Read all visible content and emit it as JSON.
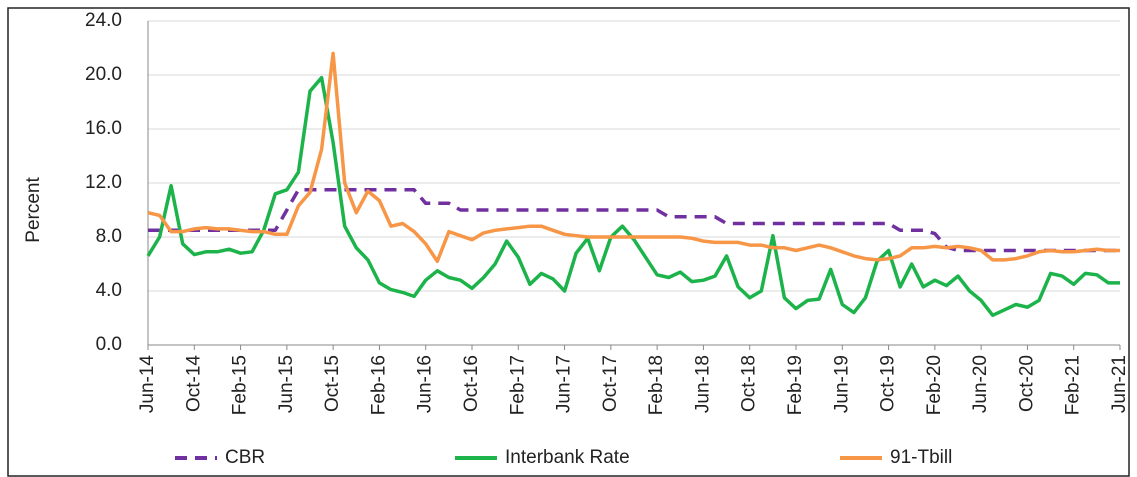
{
  "chart_data": {
    "type": "line",
    "y_label": "Percent",
    "categories": [
      "Jun-14",
      null,
      null,
      null,
      "Oct-14",
      null,
      null,
      null,
      "Feb-15",
      null,
      null,
      null,
      "Jun-15",
      null,
      null,
      null,
      "Oct-15",
      null,
      null,
      null,
      "Feb-16",
      null,
      null,
      null,
      "Jun-16",
      null,
      null,
      null,
      "Oct-16",
      null,
      null,
      null,
      "Feb-17",
      null,
      null,
      null,
      "Jun-17",
      null,
      null,
      null,
      "Oct-17",
      null,
      null,
      null,
      "Feb-18",
      null,
      null,
      null,
      "Jun-18",
      null,
      null,
      null,
      "Oct-18",
      null,
      null,
      null,
      "Feb-19",
      null,
      null,
      null,
      "Jun-19",
      null,
      null,
      null,
      "Oct-19",
      null,
      null,
      null,
      "Feb-20",
      null,
      null,
      null,
      "Jun-20",
      null,
      null,
      null,
      "Oct-20",
      null,
      null,
      null,
      "Feb-21",
      null,
      null,
      null,
      "Jun-21"
    ],
    "series": [
      {
        "name": "CBR",
        "color": "#7030a0",
        "dashed": true,
        "values": [
          8.5,
          8.5,
          8.5,
          8.5,
          8.5,
          8.5,
          8.5,
          8.5,
          8.5,
          8.5,
          8.5,
          8.5,
          10,
          11.5,
          11.5,
          11.5,
          11.5,
          11.5,
          11.5,
          11.5,
          11.5,
          11.5,
          11.5,
          11.5,
          10.5,
          10.5,
          10.5,
          10,
          10,
          10,
          10,
          10,
          10,
          10,
          10,
          10,
          10,
          10,
          10,
          10,
          10,
          10,
          10,
          10,
          10,
          9.5,
          9.5,
          9.5,
          9.5,
          9.5,
          9,
          9,
          9,
          9,
          9,
          9,
          9,
          9,
          9,
          9,
          9,
          9,
          9,
          9,
          9,
          8.5,
          8.5,
          8.5,
          8.25,
          7.25,
          7,
          7,
          7,
          7,
          7,
          7,
          7,
          7,
          7,
          7,
          7,
          7,
          7,
          7,
          7
        ]
      },
      {
        "name": "Interbank Rate",
        "color": "#1db34b",
        "dashed": false,
        "values": [
          6.6,
          8.0,
          11.8,
          7.5,
          6.7,
          6.9,
          6.9,
          7.1,
          6.8,
          6.9,
          8.5,
          11.2,
          11.5,
          12.8,
          18.8,
          19.8,
          15,
          8.8,
          7.2,
          6.3,
          4.6,
          4.1,
          3.9,
          3.6,
          4.8,
          5.5,
          5.0,
          4.8,
          4.2,
          5.0,
          6.0,
          7.7,
          6.5,
          4.5,
          5.3,
          4.9,
          4.0,
          6.8,
          7.9,
          5.5,
          8.0,
          8.8,
          7.8,
          6.5,
          5.2,
          5.0,
          5.4,
          4.7,
          4.8,
          5.1,
          6.6,
          4.3,
          3.5,
          4.0,
          8.1,
          3.5,
          2.7,
          3.3,
          3.4,
          5.6,
          3.0,
          2.4,
          3.5,
          6.2,
          7.0,
          4.3,
          6.0,
          4.3,
          4.8,
          4.4,
          5.1,
          4.0,
          3.3,
          2.2,
          2.6,
          3.0,
          2.8,
          3.3,
          5.3,
          5.1,
          4.5,
          5.3,
          5.2,
          4.6,
          4.6
        ]
      },
      {
        "name": "91-Tbill",
        "color": "#f79646",
        "dashed": false,
        "values": [
          9.8,
          9.6,
          8.4,
          8.4,
          8.6,
          8.7,
          8.6,
          8.6,
          8.5,
          8.4,
          8.4,
          8.2,
          8.2,
          10.3,
          11.3,
          14.5,
          21.6,
          12.0,
          9.8,
          11.4,
          10.7,
          8.8,
          9.0,
          8.4,
          7.5,
          6.2,
          8.4,
          8.1,
          7.8,
          8.3,
          8.5,
          8.6,
          8.7,
          8.8,
          8.8,
          8.5,
          8.2,
          8.1,
          8.0,
          8.0,
          8.0,
          8.0,
          8.0,
          8.0,
          8.0,
          8.0,
          8.0,
          7.9,
          7.7,
          7.6,
          7.6,
          7.6,
          7.4,
          7.4,
          7.2,
          7.2,
          7.0,
          7.2,
          7.4,
          7.2,
          6.9,
          6.6,
          6.4,
          6.3,
          6.4,
          6.6,
          7.2,
          7.2,
          7.3,
          7.2,
          7.3,
          7.2,
          7.0,
          6.3,
          6.3,
          6.4,
          6.6,
          6.9,
          7.0,
          6.9,
          6.9,
          7.0,
          7.1,
          7.0,
          7.0
        ]
      }
    ],
    "ylim": [
      0,
      24
    ],
    "yticks": [
      {
        "value": 0,
        "label": "0.0"
      },
      {
        "value": 4,
        "label": "4.0"
      },
      {
        "value": 8,
        "label": "8.0"
      },
      {
        "value": 12,
        "label": "12.0"
      },
      {
        "value": 16,
        "label": "16.0"
      },
      {
        "value": 20,
        "label": "20.0"
      },
      {
        "value": 24,
        "label": "24.0"
      }
    ],
    "grid": true
  }
}
